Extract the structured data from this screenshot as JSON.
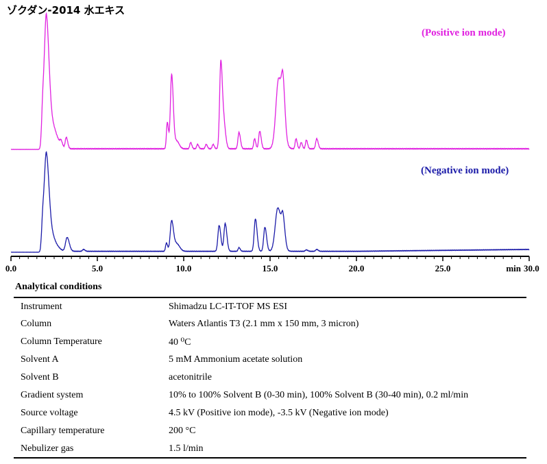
{
  "title": "ゾクダン-2014 水エキス",
  "chart_data": {
    "type": "line",
    "x_unit": "min",
    "xlim": [
      0,
      30
    ],
    "xticks": [
      "0.0",
      "5.0",
      "10.0",
      "15.0",
      "20.0",
      "25.0",
      "30.0"
    ],
    "x_unit_label": "min",
    "series": [
      {
        "name": "(Positive ion mode)",
        "color": "#e020e0",
        "baseline": 0.005,
        "peaks": [
          {
            "rt": 1.85,
            "h": 0.36,
            "w": 0.07
          },
          {
            "rt": 2.05,
            "h": 1.0,
            "w": 0.1
          },
          {
            "rt": 2.3,
            "h": 0.21,
            "w": 0.12
          },
          {
            "rt": 2.6,
            "h": 0.09,
            "w": 0.15
          },
          {
            "rt": 2.9,
            "h": 0.04,
            "w": 0.06
          },
          {
            "rt": 3.2,
            "h": 0.09,
            "w": 0.06
          },
          {
            "rt": 9.05,
            "h": 0.21,
            "w": 0.05
          },
          {
            "rt": 9.3,
            "h": 0.59,
            "w": 0.07
          },
          {
            "rt": 9.6,
            "h": 0.06,
            "w": 0.1
          },
          {
            "rt": 10.4,
            "h": 0.05,
            "w": 0.05
          },
          {
            "rt": 10.8,
            "h": 0.035,
            "w": 0.05
          },
          {
            "rt": 11.3,
            "h": 0.035,
            "w": 0.05
          },
          {
            "rt": 11.7,
            "h": 0.035,
            "w": 0.05
          },
          {
            "rt": 12.15,
            "h": 0.7,
            "w": 0.07
          },
          {
            "rt": 12.35,
            "h": 0.15,
            "w": 0.07
          },
          {
            "rt": 13.2,
            "h": 0.13,
            "w": 0.06
          },
          {
            "rt": 14.1,
            "h": 0.08,
            "w": 0.05
          },
          {
            "rt": 14.4,
            "h": 0.14,
            "w": 0.06
          },
          {
            "rt": 15.5,
            "h": 0.56,
            "w": 0.16
          },
          {
            "rt": 15.75,
            "h": 0.3,
            "w": 0.08
          },
          {
            "rt": 16.5,
            "h": 0.08,
            "w": 0.05
          },
          {
            "rt": 16.8,
            "h": 0.05,
            "w": 0.05
          },
          {
            "rt": 17.1,
            "h": 0.07,
            "w": 0.05
          },
          {
            "rt": 17.7,
            "h": 0.08,
            "w": 0.06
          }
        ]
      },
      {
        "name": "(Negative ion mode)",
        "color": "#1a1aa8",
        "baseline": 0.01,
        "drift": 0.02,
        "peaks": [
          {
            "rt": 1.85,
            "h": 0.38,
            "w": 0.07
          },
          {
            "rt": 2.05,
            "h": 1.0,
            "w": 0.1
          },
          {
            "rt": 2.3,
            "h": 0.2,
            "w": 0.12
          },
          {
            "rt": 2.6,
            "h": 0.06,
            "w": 0.15
          },
          {
            "rt": 3.25,
            "h": 0.15,
            "w": 0.09
          },
          {
            "rt": 4.2,
            "h": 0.02,
            "w": 0.06
          },
          {
            "rt": 9.0,
            "h": 0.09,
            "w": 0.05
          },
          {
            "rt": 9.3,
            "h": 0.33,
            "w": 0.08
          },
          {
            "rt": 9.6,
            "h": 0.08,
            "w": 0.12
          },
          {
            "rt": 12.05,
            "h": 0.28,
            "w": 0.07
          },
          {
            "rt": 12.4,
            "h": 0.3,
            "w": 0.07
          },
          {
            "rt": 13.2,
            "h": 0.04,
            "w": 0.05
          },
          {
            "rt": 14.15,
            "h": 0.35,
            "w": 0.07
          },
          {
            "rt": 14.7,
            "h": 0.26,
            "w": 0.07
          },
          {
            "rt": 15.45,
            "h": 0.47,
            "w": 0.15
          },
          {
            "rt": 15.75,
            "h": 0.25,
            "w": 0.08
          },
          {
            "rt": 17.1,
            "h": 0.015,
            "w": 0.06
          },
          {
            "rt": 17.7,
            "h": 0.02,
            "w": 0.06
          }
        ]
      }
    ]
  },
  "conditions": {
    "title": "Analytical conditions",
    "rows": [
      {
        "key": "Instrument",
        "value": "Shimadzu LC-IT-TOF MS ESI"
      },
      {
        "key": "Column",
        "value": "Waters Atlantis T3 (2.1 mm x 150 mm, 3 micron)"
      },
      {
        "key": "Column Temperature",
        "value": "40 ⁰C"
      },
      {
        "key": "Solvent A",
        "value": "5 mM Ammonium acetate solution"
      },
      {
        "key": "Solvent B",
        "value": "acetonitrile"
      },
      {
        "key": "Gradient system",
        "value": "10% to 100% Solvent B (0-30 min), 100% Solvent B (30-40 min), 0.2 ml/min"
      },
      {
        "key": "Source voltage",
        "value": "4.5 kV (Positive ion mode), -3.5 kV (Negative ion mode)"
      },
      {
        "key": "Capillary temperature",
        "value": "200 °C"
      },
      {
        "key": "Nebulizer gas",
        "value": "1.5 l/min"
      }
    ]
  }
}
